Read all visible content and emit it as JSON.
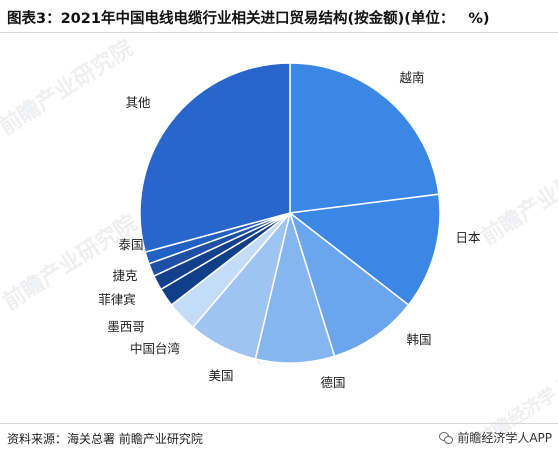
{
  "title": {
    "main": "图表3：2021年中国电线电缆行业相关进口贸易结构(按金额)(单位：",
    "unit": "%)"
  },
  "source": "资料来源：海关总署 前瞻产业研究院",
  "wechat_account": "前瞻经济学人APP",
  "watermarks": [
    "前瞻产业研究院",
    "前瞻产业研究院",
    "前瞻产业研究院",
    "前瞻产业研究院",
    "前瞻产业研究院",
    "前瞻经济学人"
  ],
  "colors": {
    "background": "#ffffff",
    "slice_edge": "#ffffff"
  },
  "chart_data": {
    "type": "pie",
    "title": "2021年中国电线电缆行业相关进口贸易结构(按金额)",
    "unit": "%",
    "start_angle_deg": 0,
    "direction": "clockwise",
    "categories": [
      "越南",
      "日本",
      "韩国",
      "德国",
      "美国",
      "中国台湾",
      "墨西哥",
      "菲律宾",
      "捷克",
      "泰国",
      "其他"
    ],
    "values": [
      23.0,
      12.5,
      9.7,
      8.5,
      7.5,
      3.3,
      2.0,
      1.6,
      1.4,
      1.3,
      29.2
    ],
    "slice_colors": [
      "#3b87e6",
      "#3b87e6",
      "#6aa5ed",
      "#86b6f0",
      "#9fc4f3",
      "#c5dcf8",
      "#103f8a",
      "#133f8b",
      "#1e50a7",
      "#2160c5",
      "#2866cb"
    ]
  }
}
